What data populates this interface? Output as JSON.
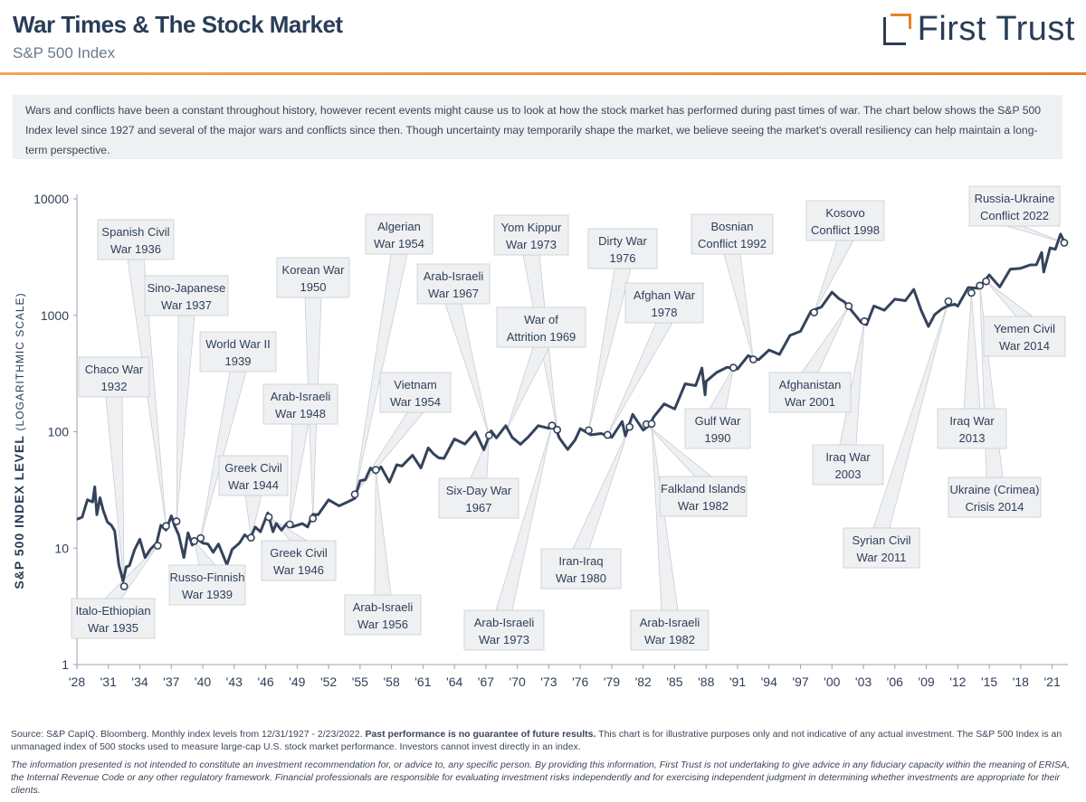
{
  "header": {
    "title": "War Times & The Stock Market",
    "subtitle": "S&P 500 Index",
    "logo_text": "First Trust"
  },
  "intro": "Wars and conflicts have been a constant throughout history, however recent events might cause us to look at how the stock market has performed during past times of war. The chart below shows the S&P 500 Index level since 1927 and several of the major wars and conflicts since then. Though uncertainty may temporarily shape the market, we believe seeing the market's overall resiliency can help maintain a long-term perspective.",
  "footer": {
    "source_prefix": "Source: S&P CapIQ. Bloomberg. Monthly index levels from 12/31/1927 - 2/23/2022.",
    "source_bold": "Past performance is no guarantee of future results.",
    "source_suffix": "This chart is for illustrative purposes only and not indicative of any actual investment. The S&P 500 Index is an unmanaged index of 500 stocks used to measure large-cap U.S. stock market performance. Investors cannot invest directly in an index.",
    "disclaimer": "The information presented is not intended to constitute an investment recommendation for, or advice to, any specific person. By providing this information, First Trust is not undertaking to give advice in any fiduciary capacity within the meaning of ERISA, the Internal Revenue Code or any other regulatory framework. Financial professionals are responsible for evaluating investment risks independently and for exercising independent judgment in determining whether investments are appropriate for their clients."
  },
  "colors": {
    "line": "#34435b",
    "accent": "#e8822a",
    "callout_bg": "#eef0f2",
    "callout_border": "#c9ced6"
  },
  "chart_data": {
    "type": "line",
    "title": "S&P 500 Index",
    "ylabel_bold": "S&P 500 INDEX LEVEL",
    "ylabel_light": "(LOGARITHMIC SCALE)",
    "yscale": "log",
    "ylim": [
      1,
      10000
    ],
    "y_ticks": [
      1,
      10,
      100,
      1000,
      10000
    ],
    "y_tick_labels": [
      "1",
      "10",
      "100",
      "1000",
      "10000"
    ],
    "xlim": [
      1928,
      2022.5
    ],
    "x_ticks": [
      1928,
      1931,
      1934,
      1937,
      1940,
      1943,
      1946,
      1949,
      1952,
      1955,
      1958,
      1961,
      1964,
      1967,
      1970,
      1973,
      1976,
      1979,
      1982,
      1985,
      1988,
      1991,
      1994,
      1997,
      2000,
      2003,
      2006,
      2009,
      2012,
      2015,
      2018,
      2021
    ],
    "x_tick_labels": [
      "'28",
      "'31",
      "'34",
      "'37",
      "'40",
      "'43",
      "'46",
      "'49",
      "'52",
      "'55",
      "'58",
      "'61",
      "'64",
      "'67",
      "'70",
      "'73",
      "'76",
      "'79",
      "'82",
      "'85",
      "'88",
      "'91",
      "'94",
      "'97",
      "'00",
      "'03",
      "'06",
      "'09",
      "'12",
      "'15",
      "'18",
      "'21"
    ],
    "series": [
      {
        "name": "S&P 500 Index",
        "points": [
          [
            1928,
            17.7
          ],
          [
            1928.5,
            20
          ],
          [
            1929,
            24
          ],
          [
            1929.5,
            27
          ],
          [
            1929.7,
            31
          ],
          [
            1929.9,
            21
          ],
          [
            1930.2,
            25
          ],
          [
            1930.5,
            23
          ],
          [
            1930.9,
            15.5
          ],
          [
            1931.3,
            17
          ],
          [
            1931.6,
            13
          ],
          [
            1932,
            7.8
          ],
          [
            1932.4,
            4.8
          ],
          [
            1932.7,
            7.5
          ],
          [
            1933,
            6.5
          ],
          [
            1933.5,
            10.5
          ],
          [
            1934,
            11
          ],
          [
            1934.5,
            9
          ],
          [
            1935,
            9
          ],
          [
            1935.6,
            12
          ],
          [
            1936,
            14.5
          ],
          [
            1936.5,
            15.5
          ],
          [
            1937,
            17.5
          ],
          [
            1937.3,
            17
          ],
          [
            1937.7,
            12
          ],
          [
            1938.2,
            9
          ],
          [
            1938.6,
            12.5
          ],
          [
            1939,
            11.5
          ],
          [
            1939.5,
            11
          ],
          [
            1940,
            12
          ],
          [
            1940.5,
            10
          ],
          [
            1941,
            10
          ],
          [
            1941.5,
            10
          ],
          [
            1942.3,
            7.8
          ],
          [
            1942.8,
            9
          ],
          [
            1943.5,
            12
          ],
          [
            1944,
            12
          ],
          [
            1944.5,
            13
          ],
          [
            1945,
            14
          ],
          [
            1945.5,
            15
          ],
          [
            1946.2,
            18.5
          ],
          [
            1946.7,
            15
          ],
          [
            1947,
            15
          ],
          [
            1947.5,
            15.5
          ],
          [
            1948,
            15
          ],
          [
            1948.5,
            16.5
          ],
          [
            1949.5,
            15
          ],
          [
            1950,
            16.5
          ],
          [
            1950.5,
            18
          ],
          [
            1951,
            21
          ],
          [
            1952,
            24
          ],
          [
            1953,
            25
          ],
          [
            1953.8,
            23
          ],
          [
            1954.5,
            29
          ],
          [
            1955,
            35
          ],
          [
            1955.5,
            42
          ],
          [
            1956,
            45
          ],
          [
            1956.5,
            48
          ],
          [
            1957,
            46
          ],
          [
            1957.8,
            40
          ],
          [
            1958.5,
            48
          ],
          [
            1959,
            55
          ],
          [
            1960,
            58
          ],
          [
            1960.8,
            53
          ],
          [
            1961.5,
            67
          ],
          [
            1962,
            70
          ],
          [
            1962.5,
            55
          ],
          [
            1963,
            64
          ],
          [
            1964,
            80
          ],
          [
            1965,
            85
          ],
          [
            1966,
            92
          ],
          [
            1966.8,
            76
          ],
          [
            1967.5,
            94
          ],
          [
            1968,
            96
          ],
          [
            1968.9,
            104
          ],
          [
            1969.5,
            97
          ],
          [
            1970.3,
            72
          ],
          [
            1971,
            97
          ],
          [
            1972,
            104
          ],
          [
            1973,
            116
          ],
          [
            1973.5,
            108
          ],
          [
            1974,
            96
          ],
          [
            1974.8,
            65
          ],
          [
            1975.5,
            92
          ],
          [
            1976,
            98
          ],
          [
            1977,
            102
          ],
          [
            1978,
            89
          ],
          [
            1979,
            97
          ],
          [
            1980,
            113
          ],
          [
            1980.3,
            100
          ],
          [
            1981,
            130
          ],
          [
            1982,
            112
          ],
          [
            1982.6,
            105
          ],
          [
            1983,
            145
          ],
          [
            1984,
            160
          ],
          [
            1985,
            170
          ],
          [
            1986,
            238
          ],
          [
            1987,
            270
          ],
          [
            1987.6,
            325
          ],
          [
            1987.9,
            225
          ],
          [
            1988,
            250
          ],
          [
            1989,
            350
          ],
          [
            1990,
            330
          ],
          [
            1991,
            375
          ],
          [
            1992,
            415
          ],
          [
            1993,
            450
          ],
          [
            1994,
            465
          ],
          [
            1995,
            500
          ],
          [
            1996,
            620
          ],
          [
            1997,
            790
          ],
          [
            1998,
            1000
          ],
          [
            1999,
            1280
          ],
          [
            2000,
            1460
          ],
          [
            2000.7,
            1500
          ],
          [
            2001.2,
            1200
          ],
          [
            2002,
            1150
          ],
          [
            2002.8,
            800
          ],
          [
            2003.3,
            900
          ],
          [
            2004,
            1110
          ],
          [
            2005,
            1200
          ],
          [
            2006,
            1270
          ],
          [
            2007,
            1450
          ],
          [
            2007.8,
            1540
          ],
          [
            2008.5,
            1200
          ],
          [
            2009.2,
            740
          ],
          [
            2009.8,
            1100
          ],
          [
            2010.5,
            1050
          ],
          [
            2011,
            1300
          ],
          [
            2011.7,
            1150
          ],
          [
            2012,
            1300
          ],
          [
            2013,
            1600
          ],
          [
            2014,
            1850
          ],
          [
            2015,
            2050
          ],
          [
            2016,
            1900
          ],
          [
            2017,
            2300
          ],
          [
            2018,
            2750
          ],
          [
            2018.9,
            2500
          ],
          [
            2019.5,
            2950
          ],
          [
            2020,
            3200
          ],
          [
            2020.2,
            2550
          ],
          [
            2020.8,
            3500
          ],
          [
            2021.3,
            4000
          ],
          [
            2021.8,
            4600
          ],
          [
            2022.15,
            4300
          ]
        ]
      }
    ],
    "markers": [
      {
        "year": 1932.5,
        "value": 4.7
      },
      {
        "year": 1935.7,
        "value": 10.5
      },
      {
        "year": 1936.5,
        "value": 15.5
      },
      {
        "year": 1937.5,
        "value": 17
      },
      {
        "year": 1939.2,
        "value": 11.5
      },
      {
        "year": 1939.8,
        "value": 12.2
      },
      {
        "year": 1944.6,
        "value": 12.3
      },
      {
        "year": 1946.3,
        "value": 18.5
      },
      {
        "year": 1948.3,
        "value": 16
      },
      {
        "year": 1950.5,
        "value": 18
      },
      {
        "year": 1954.5,
        "value": 29
      },
      {
        "year": 1956.5,
        "value": 47
      },
      {
        "year": 1967.3,
        "value": 93
      },
      {
        "year": 1973.3,
        "value": 113
      },
      {
        "year": 1973.8,
        "value": 104
      },
      {
        "year": 1976.8,
        "value": 103
      },
      {
        "year": 1978.6,
        "value": 94
      },
      {
        "year": 1980.7,
        "value": 110
      },
      {
        "year": 1982.3,
        "value": 116
      },
      {
        "year": 1982.8,
        "value": 117
      },
      {
        "year": 1990.6,
        "value": 355
      },
      {
        "year": 1992.5,
        "value": 418
      },
      {
        "year": 1998.3,
        "value": 1060
      },
      {
        "year": 2001.6,
        "value": 1200
      },
      {
        "year": 2003.1,
        "value": 890
      },
      {
        "year": 2011.1,
        "value": 1320
      },
      {
        "year": 2013.3,
        "value": 1560
      },
      {
        "year": 2014.1,
        "value": 1800
      },
      {
        "year": 2014.7,
        "value": 1960
      },
      {
        "year": 2022.15,
        "value": 4200
      }
    ],
    "annotations": [
      {
        "label": [
          "Chaco War",
          "1932"
        ],
        "year": 1932.5,
        "value": 4.7
      },
      {
        "label": [
          "Spanish Civil",
          "War 1936"
        ],
        "year": 1936.5,
        "value": 15.5
      },
      {
        "label": [
          "Sino-Japanese",
          "War 1937"
        ],
        "year": 1937.5,
        "value": 17
      },
      {
        "label": [
          "World War II",
          "1939"
        ],
        "year": 1939.8,
        "value": 12.2
      },
      {
        "label": [
          "Greek Civil",
          "War 1944"
        ],
        "year": 1944.6,
        "value": 12.3
      },
      {
        "label": [
          "Korean War",
          "1950"
        ],
        "year": 1950.5,
        "value": 18
      },
      {
        "label": [
          "Arab-Israeli",
          "War 1948"
        ],
        "year": 1948.3,
        "value": 16
      },
      {
        "label": [
          "Algerian",
          "War 1954"
        ],
        "year": 1954.5,
        "value": 29
      },
      {
        "label": [
          "Vietnam",
          "War 1954"
        ],
        "year": 1954.6,
        "value": 30
      },
      {
        "label": [
          "Arab-Israeli",
          "War 1967"
        ],
        "year": 1967.3,
        "value": 93
      },
      {
        "label": [
          "Yom Kippur",
          "War 1973"
        ],
        "year": 1973.8,
        "value": 104
      },
      {
        "label": [
          "War of",
          "Attrition 1969"
        ],
        "year": 1969,
        "value": 104
      },
      {
        "label": [
          "Dirty War",
          "1976"
        ],
        "year": 1976.8,
        "value": 103
      },
      {
        "label": [
          "Afghan War",
          "1978"
        ],
        "year": 1978.6,
        "value": 94
      },
      {
        "label": [
          "Bosnian",
          "Conflict 1992"
        ],
        "year": 1992.5,
        "value": 418
      },
      {
        "label": [
          "Kosovo",
          "Conflict 1998"
        ],
        "year": 1998.3,
        "value": 1060
      },
      {
        "label": [
          "Russia-Ukraine",
          "Conflict 2022"
        ],
        "year": 2022.15,
        "value": 4200
      },
      {
        "label": [
          "Yemen Civil",
          "War 2014"
        ],
        "year": 2014.7,
        "value": 1960
      },
      {
        "label": [
          "Afghanistan",
          "War 2001"
        ],
        "year": 2001.6,
        "value": 1200
      },
      {
        "label": [
          "Gulf War",
          "1990"
        ],
        "year": 1990.6,
        "value": 355
      },
      {
        "label": [
          "Iraq War",
          "2003"
        ],
        "year": 2003.1,
        "value": 890
      },
      {
        "label": [
          "Iraq War",
          "2013"
        ],
        "year": 2013.3,
        "value": 1560
      },
      {
        "label": [
          "Ukraine (Crimea)",
          "Crisis 2014"
        ],
        "year": 2014.1,
        "value": 1800
      },
      {
        "label": [
          "Syrian Civil",
          "War 2011"
        ],
        "year": 2011.1,
        "value": 1320
      },
      {
        "label": [
          "Falkland Islands",
          "War 1982"
        ],
        "year": 1982.3,
        "value": 116
      },
      {
        "label": [
          "Arab-Israeli",
          "War 1982"
        ],
        "year": 1982.8,
        "value": 117
      },
      {
        "label": [
          "Iran-Iraq",
          "War 1980"
        ],
        "year": 1980.7,
        "value": 110
      },
      {
        "label": [
          "Arab-Israeli",
          "War 1973"
        ],
        "year": 1973.3,
        "value": 113
      },
      {
        "label": [
          "Six-Day War",
          "1967"
        ],
        "year": 1967.3,
        "value": 93
      },
      {
        "label": [
          "Arab-Israeli",
          "War 1956"
        ],
        "year": 1956.5,
        "value": 47
      },
      {
        "label": [
          "Greek Civil",
          "War 1946"
        ],
        "year": 1946.3,
        "value": 18.5
      },
      {
        "label": [
          "Russo-Finnish",
          "War 1939"
        ],
        "year": 1939.2,
        "value": 11.5
      },
      {
        "label": [
          "Italo-Ethiopian",
          "War 1935"
        ],
        "year": 1935.7,
        "value": 10.5
      }
    ]
  }
}
